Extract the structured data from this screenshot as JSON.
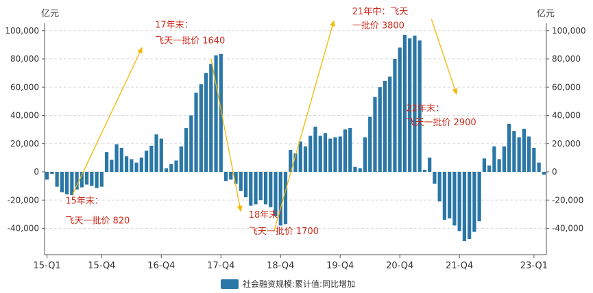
{
  "chart_data": {
    "type": "bar",
    "title": "",
    "unit_left": "亿元",
    "unit_right": "亿元",
    "ylim": [
      -50000,
      100000
    ],
    "yticks": [
      -40000,
      -20000,
      0,
      20000,
      40000,
      60000,
      80000,
      100000
    ],
    "ytick_labels": [
      "-40,000",
      "-20,000",
      "0",
      "20,000",
      "40,000",
      "60,000",
      "80,000",
      "100,000"
    ],
    "x_ticks": [
      {
        "label": "15-Q1",
        "index": 0
      },
      {
        "label": "15-Q4",
        "index": 11
      },
      {
        "label": "16-Q4",
        "index": 23
      },
      {
        "label": "17-Q4",
        "index": 35
      },
      {
        "label": "18-Q4",
        "index": 47
      },
      {
        "label": "19-Q4",
        "index": 59
      },
      {
        "label": "20-Q4",
        "index": 71
      },
      {
        "label": "21-Q4",
        "index": 83
      },
      {
        "label": "23-Q1",
        "index": 98
      }
    ],
    "series": [
      {
        "name": "社会融资规模:累计值:同比增加",
        "color": "#2a77a8",
        "values": [
          -5500,
          -1500,
          -10500,
          -14500,
          -16000,
          -16500,
          -12500,
          -11000,
          -9000,
          -10000,
          -11500,
          -10500,
          14000,
          8500,
          19500,
          17000,
          11000,
          9000,
          6500,
          10000,
          15000,
          18500,
          26500,
          23500,
          2500,
          5500,
          8000,
          18000,
          31000,
          40000,
          56000,
          62000,
          70000,
          76500,
          82500,
          83500,
          -6500,
          -5500,
          -8500,
          -13500,
          -18000,
          -24000,
          -23000,
          -20000,
          -23000,
          -25000,
          -31500,
          -38000,
          -37000,
          15500,
          13000,
          21500,
          18000,
          25500,
          32000,
          25500,
          27500,
          23500,
          24500,
          25000,
          30000,
          31000,
          3500,
          2500,
          24500,
          39000,
          53000,
          60000,
          64500,
          67500,
          80000,
          88000,
          97000,
          94500,
          96500,
          93000,
          1500,
          10000,
          -8500,
          -21000,
          -34000,
          -33000,
          -38000,
          -42000,
          -49000,
          -47500,
          -42500,
          -35000,
          9500,
          4500,
          18000,
          9000,
          18000,
          34000,
          29000,
          24500,
          30500,
          25000,
          17000,
          6500,
          -2000
        ]
      }
    ],
    "annotations": [
      {
        "line1": "15年末：",
        "line2": "飞天一批价 820",
        "color": "#cc2b1d"
      },
      {
        "line1": "17年末：",
        "line2": "飞天一批价 1640",
        "color": "#cc2b1d"
      },
      {
        "line1": "18年末：",
        "line2": "飞天一批价 1700",
        "color": "#cc2b1d"
      },
      {
        "line1": "21年中：飞天",
        "line2": "一批价 3800",
        "color": "#cc2b1d"
      },
      {
        "line1": "22年末：",
        "line2": "飞天一批价 2900",
        "color": "#cc2b1d"
      }
    ],
    "arrow_color": "#f5b800",
    "legend": {
      "label": "社会融资规模:累计值:同比增加",
      "position": "bottom"
    }
  }
}
